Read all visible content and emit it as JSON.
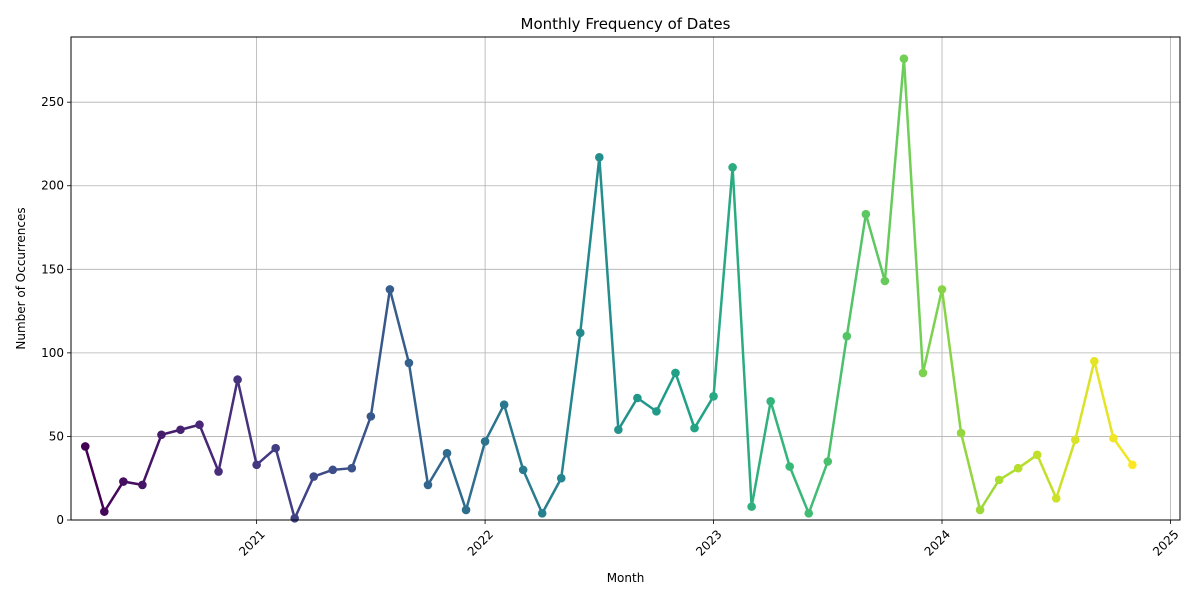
{
  "chart_data": {
    "type": "line",
    "title": "Monthly Frequency of Dates",
    "xlabel": "Month",
    "ylabel": "Number of Occurrences",
    "xlim": [
      "2020-03",
      "2025-01"
    ],
    "ylim": [
      0,
      289
    ],
    "x_ticks": [
      {
        "date": "2021-01",
        "label": "2021"
      },
      {
        "date": "2022-01",
        "label": "2022"
      },
      {
        "date": "2023-01",
        "label": "2023"
      },
      {
        "date": "2024-01",
        "label": "2024"
      },
      {
        "date": "2025-01",
        "label": "2025"
      }
    ],
    "y_ticks": [
      0,
      50,
      100,
      150,
      200,
      250
    ],
    "grid": true,
    "colormap": "viridis",
    "series": [
      {
        "x": [
          "2020-04",
          "2020-05",
          "2020-06",
          "2020-07",
          "2020-08",
          "2020-09",
          "2020-10",
          "2020-11",
          "2020-12",
          "2021-01",
          "2021-02",
          "2021-03",
          "2021-04",
          "2021-05",
          "2021-06",
          "2021-07",
          "2021-08",
          "2021-09",
          "2021-10",
          "2021-11",
          "2021-12",
          "2022-01",
          "2022-02",
          "2022-03",
          "2022-04",
          "2022-05",
          "2022-06",
          "2022-07",
          "2022-08",
          "2022-09",
          "2022-10",
          "2022-11",
          "2022-12",
          "2023-01",
          "2023-02",
          "2023-03",
          "2023-04",
          "2023-05",
          "2023-06",
          "2023-07",
          "2023-08",
          "2023-09",
          "2023-10",
          "2023-11",
          "2023-12",
          "2024-01",
          "2024-02",
          "2024-03",
          "2024-04",
          "2024-05",
          "2024-06",
          "2024-07",
          "2024-08",
          "2024-09",
          "2024-10",
          "2024-11"
        ],
        "values": [
          44,
          5,
          23,
          21,
          51,
          54,
          57,
          29,
          84,
          33,
          43,
          1,
          26,
          30,
          31,
          62,
          138,
          94,
          21,
          40,
          6,
          47,
          69,
          30,
          4,
          25,
          112,
          217,
          54,
          73,
          65,
          88,
          55,
          74,
          211,
          8,
          71,
          32,
          4,
          35,
          110,
          183,
          143,
          276,
          88,
          138,
          52,
          6,
          24,
          31,
          39,
          13,
          48,
          95,
          49,
          33
        ]
      }
    ]
  }
}
